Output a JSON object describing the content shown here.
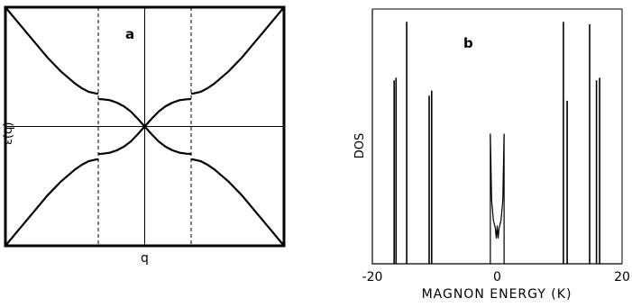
{
  "chart_data": [
    {
      "panel": "a",
      "type": "line",
      "panel_label": "a",
      "xlabel": "q",
      "ylabel": "ε(q)",
      "xlim": [
        -1,
        1
      ],
      "ylim": [
        -1,
        1
      ],
      "grid": false,
      "reference_lines": {
        "vertical_solid": [
          0
        ],
        "vertical_dashed": [
          -0.333,
          0.333
        ],
        "horizontal_solid": [
          0
        ]
      },
      "series": [
        {
          "segment": "outer-upper-left",
          "x": [
            -1,
            -0.9,
            -0.8,
            -0.7,
            -0.6,
            -0.5,
            -0.45,
            -0.4,
            -0.35,
            -0.333
          ],
          "y": [
            1,
            0.86,
            0.72,
            0.58,
            0.46,
            0.36,
            0.32,
            0.29,
            0.277,
            0.275
          ]
        },
        {
          "segment": "outer-upper-right",
          "x": [
            0.333,
            0.35,
            0.4,
            0.45,
            0.5,
            0.6,
            0.7,
            0.8,
            0.9,
            1
          ],
          "y": [
            0.275,
            0.277,
            0.29,
            0.32,
            0.36,
            0.46,
            0.58,
            0.72,
            0.86,
            1
          ]
        },
        {
          "segment": "outer-lower-left",
          "x": [
            -1,
            -0.9,
            -0.8,
            -0.7,
            -0.6,
            -0.5,
            -0.45,
            -0.4,
            -0.35,
            -0.333
          ],
          "y": [
            -1,
            -0.86,
            -0.72,
            -0.58,
            -0.46,
            -0.36,
            -0.32,
            -0.29,
            -0.277,
            -0.275
          ]
        },
        {
          "segment": "outer-lower-right",
          "x": [
            0.333,
            0.35,
            0.4,
            0.45,
            0.5,
            0.6,
            0.7,
            0.8,
            0.9,
            1
          ],
          "y": [
            -0.275,
            -0.277,
            -0.29,
            -0.32,
            -0.36,
            -0.46,
            -0.58,
            -0.72,
            -0.86,
            -1
          ]
        },
        {
          "segment": "inner-a",
          "x": [
            -0.333,
            -0.3,
            -0.25,
            -0.2,
            -0.15,
            -0.1,
            -0.05,
            0,
            0.05,
            0.1,
            0.15,
            0.2,
            0.25,
            0.3,
            0.333
          ],
          "y": [
            0.23,
            0.228,
            0.22,
            0.2,
            0.17,
            0.125,
            0.065,
            0,
            -0.065,
            -0.125,
            -0.17,
            -0.2,
            -0.22,
            -0.228,
            -0.23
          ]
        },
        {
          "segment": "inner-b",
          "x": [
            -0.333,
            -0.3,
            -0.25,
            -0.2,
            -0.15,
            -0.1,
            -0.05,
            0,
            0.05,
            0.1,
            0.15,
            0.2,
            0.25,
            0.3,
            0.333
          ],
          "y": [
            -0.23,
            -0.228,
            -0.22,
            -0.2,
            -0.17,
            -0.125,
            -0.065,
            0,
            0.065,
            0.125,
            0.17,
            0.2,
            0.22,
            0.228,
            0.23
          ]
        }
      ]
    },
    {
      "panel": "b",
      "type": "line",
      "panel_label": "b",
      "xlabel": "MAGNON ENERGY (K)",
      "ylabel": "DOS",
      "xlim": [
        -20,
        20
      ],
      "ylim": [
        0,
        1
      ],
      "x_ticks": [
        "-20",
        "0",
        "20"
      ],
      "x_tick_values": [
        -20,
        0,
        20
      ],
      "grid": false,
      "spikes": [
        {
          "x": -16.5,
          "height": 0.72
        },
        {
          "x": -16.2,
          "height": 0.73
        },
        {
          "x": -14.5,
          "height": 0.95
        },
        {
          "x": -10.9,
          "height": 0.66
        },
        {
          "x": -10.5,
          "height": 0.68
        },
        {
          "x": 10.6,
          "height": 0.95
        },
        {
          "x": 11.2,
          "height": 0.64
        },
        {
          "x": 14.8,
          "height": 0.94
        },
        {
          "x": 15.9,
          "height": 0.72
        },
        {
          "x": 16.4,
          "height": 0.73
        }
      ],
      "central_band": {
        "x_range": [
          -1.1,
          1.1
        ],
        "edge_height": 0.51,
        "profile_x": [
          -1.1,
          -0.9,
          -0.6,
          -0.3,
          -0.15,
          0,
          0.15,
          0.3,
          0.6,
          0.9,
          1.1
        ],
        "profile_y": [
          0.51,
          0.25,
          0.17,
          0.14,
          0.1,
          0.15,
          0.1,
          0.14,
          0.17,
          0.25,
          0.51
        ]
      }
    }
  ]
}
